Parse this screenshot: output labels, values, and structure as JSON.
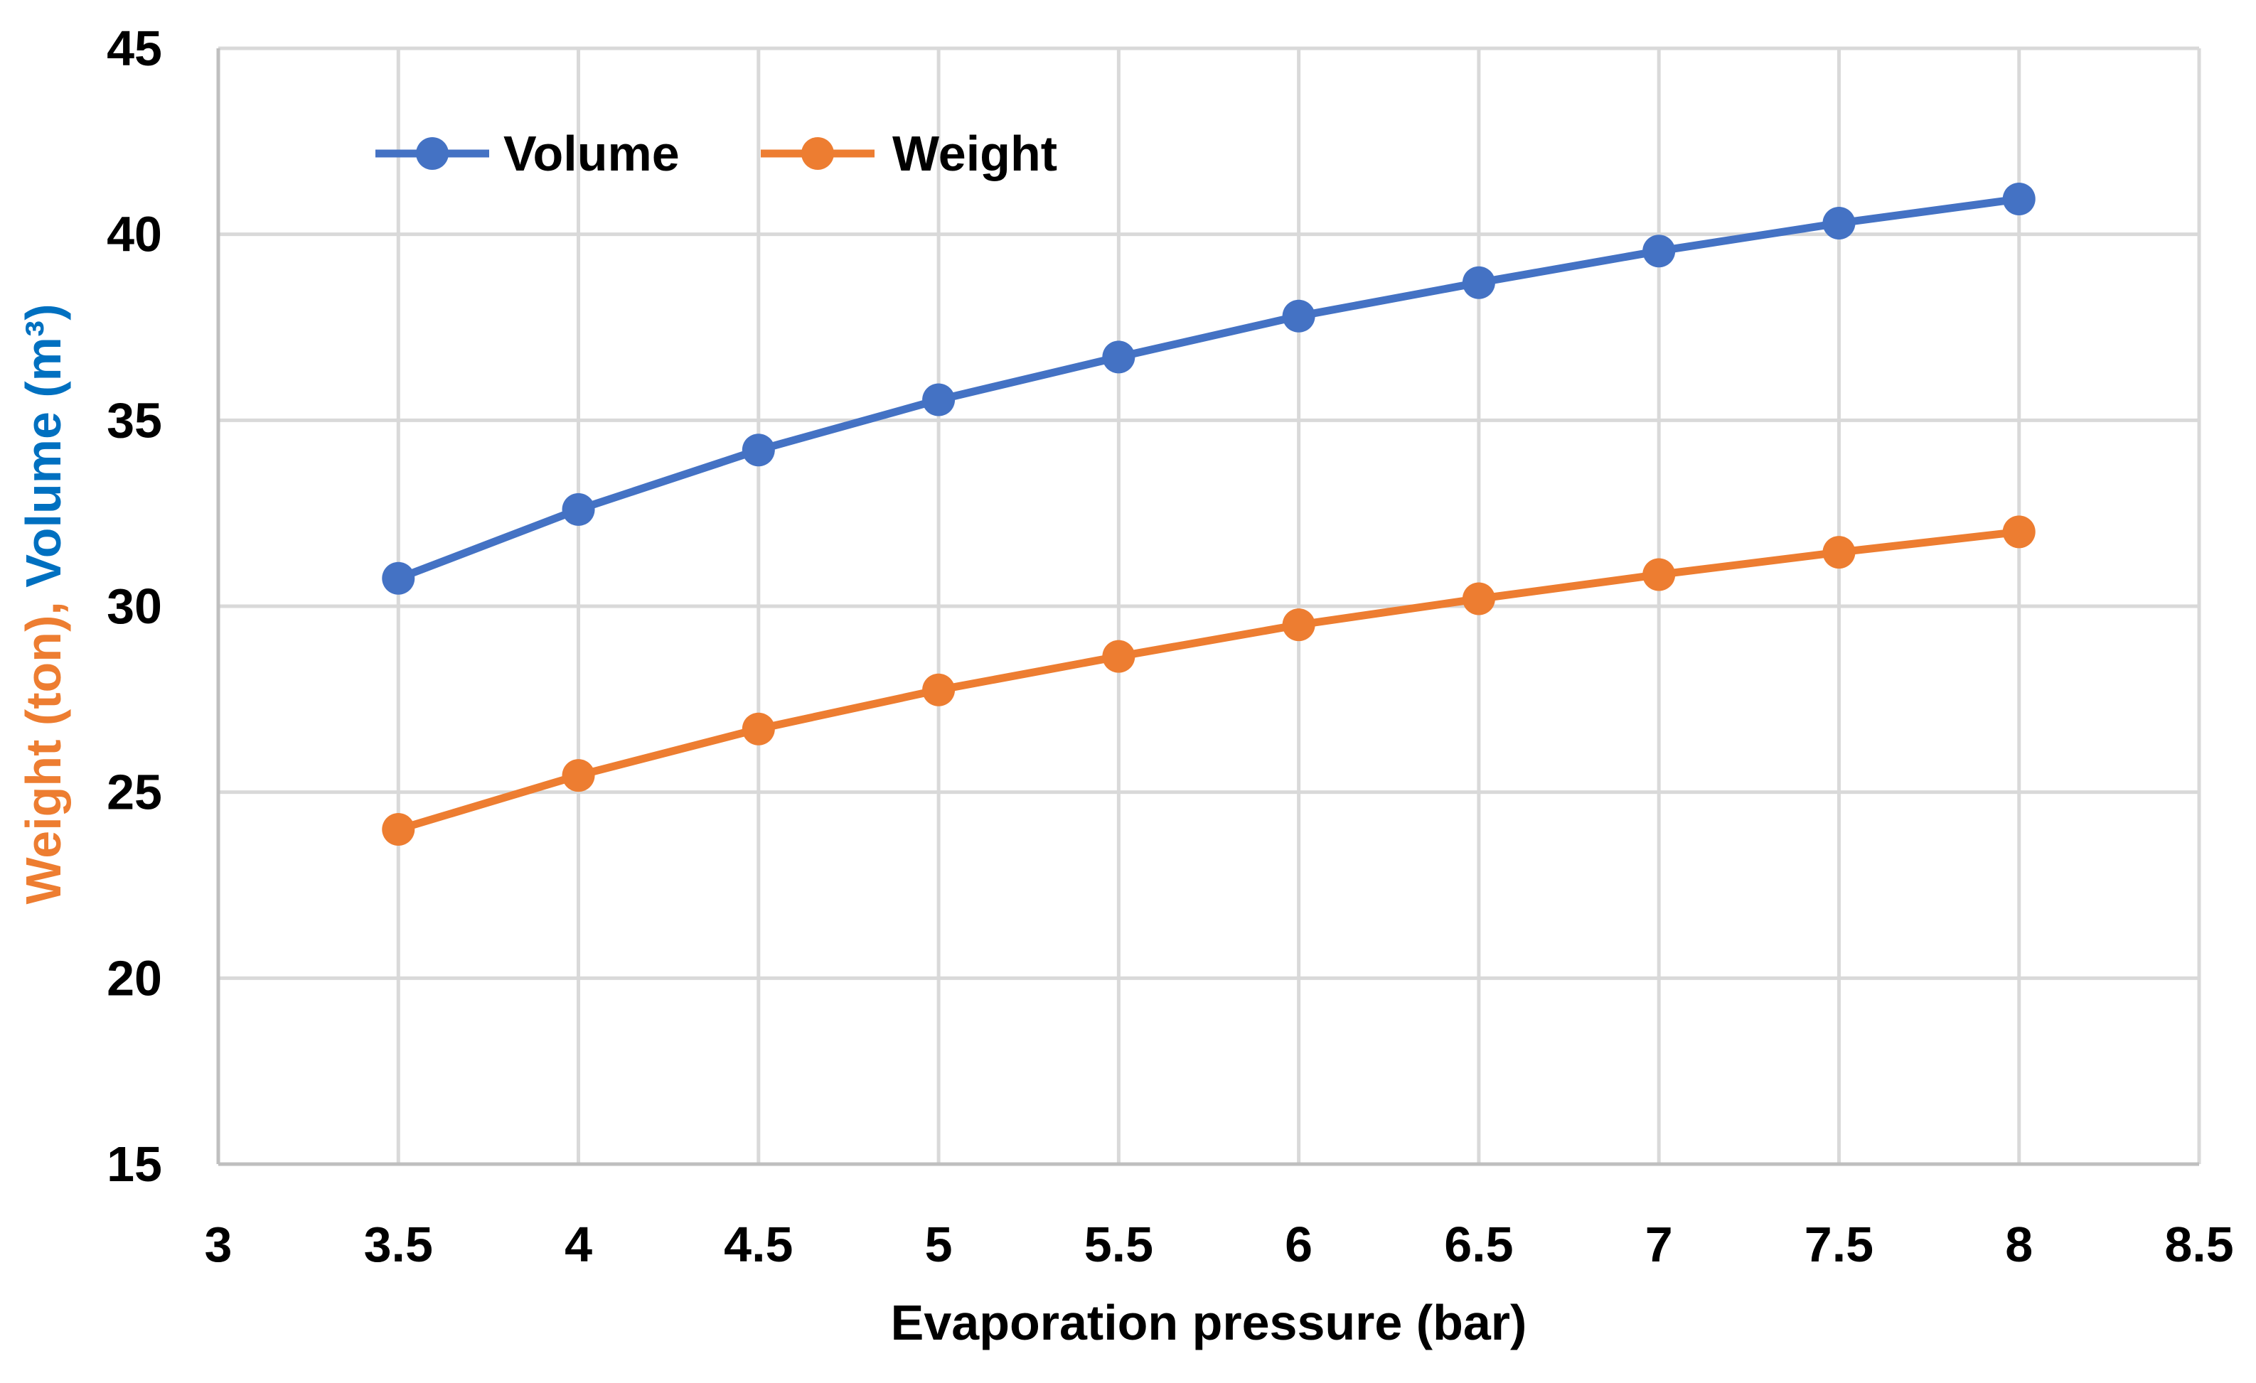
{
  "chart_data": {
    "type": "line",
    "title": "",
    "xlabel": "Evaporation pressure (bar)",
    "ylabel_parts": [
      {
        "text": "Weight (ton), ",
        "color": "#ED7D31"
      },
      {
        "text": "Volume (m³)",
        "color": "#0070C0"
      }
    ],
    "xlim": [
      3,
      8.5
    ],
    "ylim": [
      15,
      45
    ],
    "x_ticks": [
      3,
      3.5,
      4,
      4.5,
      5,
      5.5,
      6,
      6.5,
      7,
      7.5,
      8,
      8.5
    ],
    "x_tick_labels": [
      "3",
      "3.5",
      "4",
      "4.5",
      "5",
      "5.5",
      "6",
      "6.5",
      "7",
      "7.5",
      "8",
      "8.5"
    ],
    "y_ticks": [
      15,
      20,
      25,
      30,
      35,
      40,
      45
    ],
    "y_tick_labels": [
      "15",
      "20",
      "25",
      "30",
      "35",
      "40",
      "45"
    ],
    "grid": true,
    "legend_position": "top-left",
    "x": [
      3.5,
      4,
      4.5,
      5,
      5.5,
      6,
      6.5,
      7,
      7.5,
      8
    ],
    "series": [
      {
        "name": "Volume",
        "color": "#4472C4",
        "values": [
          30.75,
          32.6,
          34.2,
          35.55,
          36.7,
          37.8,
          38.7,
          39.55,
          40.3,
          40.95
        ]
      },
      {
        "name": "Weight",
        "color": "#ED7D31",
        "values": [
          24.0,
          25.45,
          26.7,
          27.75,
          28.65,
          29.5,
          30.2,
          30.85,
          31.45,
          32.0
        ]
      }
    ]
  }
}
